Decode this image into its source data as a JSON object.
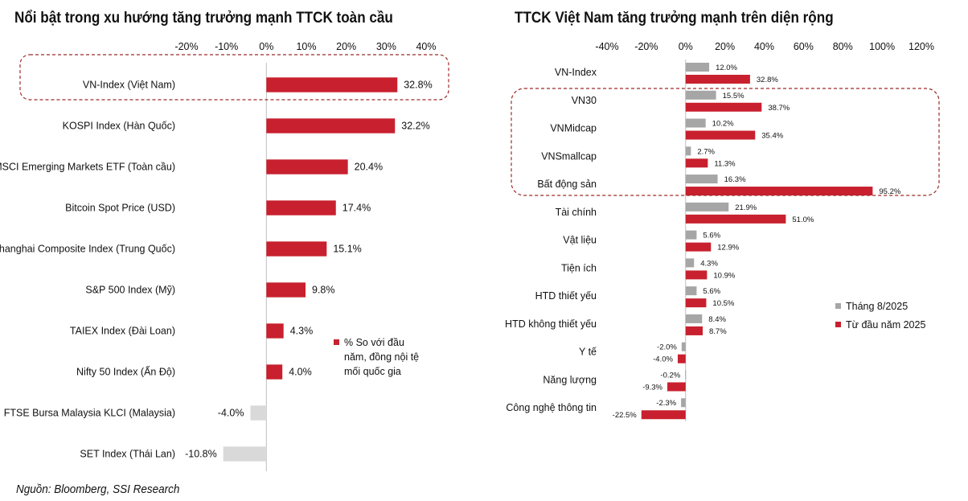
{
  "source_note": "Nguồn: Bloomberg, SSI Research",
  "colors": {
    "primary": "#c8202e",
    "secondary": "#a6a6a6",
    "negative_light": "#d9d9d9",
    "highlight_border": "#9c2a2a"
  },
  "chart_data": [
    {
      "type": "bar",
      "orientation": "horizontal",
      "title": "Nổi bật trong xu hướng tăng trưởng mạnh TTCK toàn cầu",
      "xlim": [
        -20,
        40
      ],
      "xticks": [
        "-20%",
        "-10%",
        "0%",
        "10%",
        "20%",
        "30%",
        "40%"
      ],
      "xtick_values": [
        -20,
        -10,
        0,
        10,
        20,
        30,
        40
      ],
      "categories": [
        "VN-Index (Việt Nam)",
        "KOSPI Index (Hàn Quốc)",
        "MSCI Emerging Markets ETF (Toàn cầu)",
        "Bitcoin Spot Price (USD)",
        "Shanghai Composite Index (Trung Quốc)",
        "S&P 500 Index (Mỹ)",
        "TAIEX Index (Đài Loan)",
        "Nifty 50 Index (Ấn Độ)",
        "FTSE Bursa Malaysia KLCI (Malaysia)",
        "SET Index (Thái Lan)"
      ],
      "values": [
        32.8,
        32.2,
        20.4,
        17.4,
        15.1,
        9.8,
        4.3,
        4.0,
        -4.0,
        -10.8
      ],
      "value_labels": [
        "32.8%",
        "32.2%",
        "20.4%",
        "17.4%",
        "15.1%",
        "9.8%",
        "4.3%",
        "4.0%",
        "-4.0%",
        "-10.8%"
      ],
      "legend": {
        "label": "% So với đầu năm, đồng nội tệ mối quốc gia",
        "lines": [
          "% So với đầu",
          "năm, đồng nội tệ",
          "mối quốc gia"
        ]
      },
      "highlighted_categories": [
        "VN-Index (Việt Nam)"
      ]
    },
    {
      "type": "bar",
      "orientation": "horizontal",
      "title": "TTCK Việt Nam tăng trưởng mạnh trên diện rộng",
      "xlim": [
        -40,
        120
      ],
      "xticks": [
        "-40%",
        "-20%",
        "0%",
        "20%",
        "40%",
        "60%",
        "80%",
        "100%",
        "120%"
      ],
      "xtick_values": [
        -40,
        -20,
        0,
        20,
        40,
        60,
        80,
        100,
        120
      ],
      "categories": [
        "VN-Index",
        "VN30",
        "VNMidcap",
        "VNSmallcap",
        "Bất động sản",
        "Tài chính",
        "Vật liệu",
        "Tiện ích",
        "HTD thiết yếu",
        "HTD không thiết yếu",
        "Y tế",
        "Năng lượng",
        "Công nghệ thông tin"
      ],
      "series": [
        {
          "name": "Tháng 8/2025",
          "values": [
            12.0,
            15.5,
            10.2,
            2.7,
            16.3,
            21.9,
            5.6,
            4.3,
            5.6,
            8.4,
            -2.0,
            -0.2,
            -2.3
          ],
          "value_labels": [
            "12.0%",
            "15.5%",
            "10.2%",
            "2.7%",
            "16.3%",
            "21.9%",
            "5.6%",
            "4.3%",
            "5.6%",
            "8.4%",
            "-2.0%",
            "-0.2%",
            "-2.3%"
          ]
        },
        {
          "name": "Từ đầu năm 2025",
          "values": [
            32.8,
            38.7,
            35.4,
            11.3,
            95.2,
            51.0,
            12.9,
            10.9,
            10.5,
            8.7,
            -4.0,
            -9.3,
            -22.5
          ],
          "value_labels": [
            "32.8%",
            "38.7%",
            "35.4%",
            "11.3%",
            "95.2%",
            "51.0%",
            "12.9%",
            "10.9%",
            "10.5%",
            "8.7%",
            "-4.0%",
            "-9.3%",
            "-22.5%"
          ]
        }
      ],
      "highlighted_categories": [
        "VN30",
        "VNMidcap",
        "VNSmallcap",
        "Bất động sản"
      ]
    }
  ]
}
